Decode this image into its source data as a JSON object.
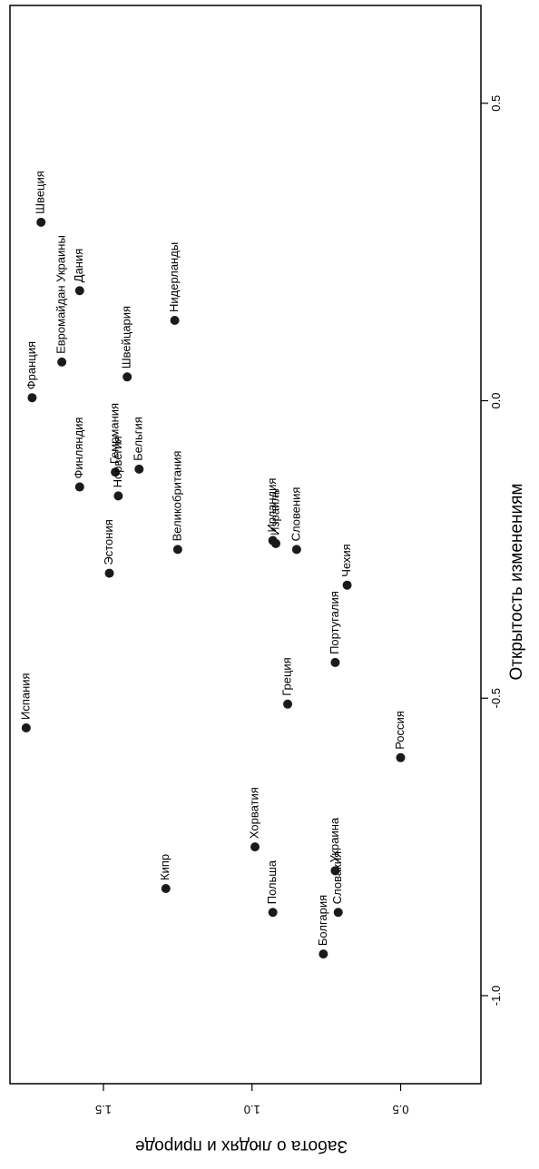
{
  "chart_data": {
    "type": "scatter",
    "xlabel": "Открытость изменениям",
    "ylabel": "Забота о людях и природе",
    "xlim": [
      -1.2,
      0.7
    ],
    "ylim": [
      0.25,
      1.78
    ],
    "x_ticks": [
      -1.0,
      -0.5,
      0.0,
      0.5
    ],
    "x_tick_labels": [
      "-1.0",
      "-0.5",
      "0.0",
      "0.5"
    ],
    "y_ticks": [
      0.5,
      1.0,
      1.5
    ],
    "y_tick_labels": [
      "0.5",
      "1.0",
      "1.5"
    ],
    "grid": false,
    "marker_color": "#1a1a1a",
    "points": [
      {
        "label": "Испания",
        "x": -0.55,
        "y": 1.76
      },
      {
        "label": "Франция",
        "x": 0.005,
        "y": 1.74
      },
      {
        "label": "Швеция",
        "x": 0.3,
        "y": 1.71
      },
      {
        "label": "Евромайдан Украины",
        "x": 0.065,
        "y": 1.64
      },
      {
        "label": "Дания",
        "x": 0.185,
        "y": 1.58
      },
      {
        "label": "Финляндия",
        "x": -0.145,
        "y": 1.58
      },
      {
        "label": "Эстония",
        "x": -0.29,
        "y": 1.48
      },
      {
        "label": "Гемрмания",
        "x": -0.12,
        "y": 1.46
      },
      {
        "label": "Норвегия",
        "x": -0.16,
        "y": 1.45
      },
      {
        "label": "Швейцария",
        "x": 0.04,
        "y": 1.42
      },
      {
        "label": "Бельгия",
        "x": -0.115,
        "y": 1.38
      },
      {
        "label": "Кипр",
        "x": -0.82,
        "y": 1.29
      },
      {
        "label": "Нидерланды",
        "x": 0.135,
        "y": 1.26
      },
      {
        "label": "Великобритания",
        "x": -0.25,
        "y": 1.25
      },
      {
        "label": "Хорватия",
        "x": -0.75,
        "y": 0.99
      },
      {
        "label": "Польша",
        "x": -0.86,
        "y": 0.93
      },
      {
        "label": "Ирландия",
        "x": -0.235,
        "y": 0.93
      },
      {
        "label": "Израиль",
        "x": -0.24,
        "y": 0.92
      },
      {
        "label": "Греция",
        "x": -0.51,
        "y": 0.88
      },
      {
        "label": "Словения",
        "x": -0.25,
        "y": 0.85
      },
      {
        "label": "Болгария",
        "x": -0.93,
        "y": 0.76
      },
      {
        "label": "Словакия",
        "x": -0.86,
        "y": 0.71
      },
      {
        "label": "Украина",
        "x": -0.79,
        "y": 0.72
      },
      {
        "label": "Португалия",
        "x": -0.44,
        "y": 0.72
      },
      {
        "label": "Чехия",
        "x": -0.31,
        "y": 0.68
      },
      {
        "label": "Россия",
        "x": -0.6,
        "y": 0.5
      }
    ]
  }
}
